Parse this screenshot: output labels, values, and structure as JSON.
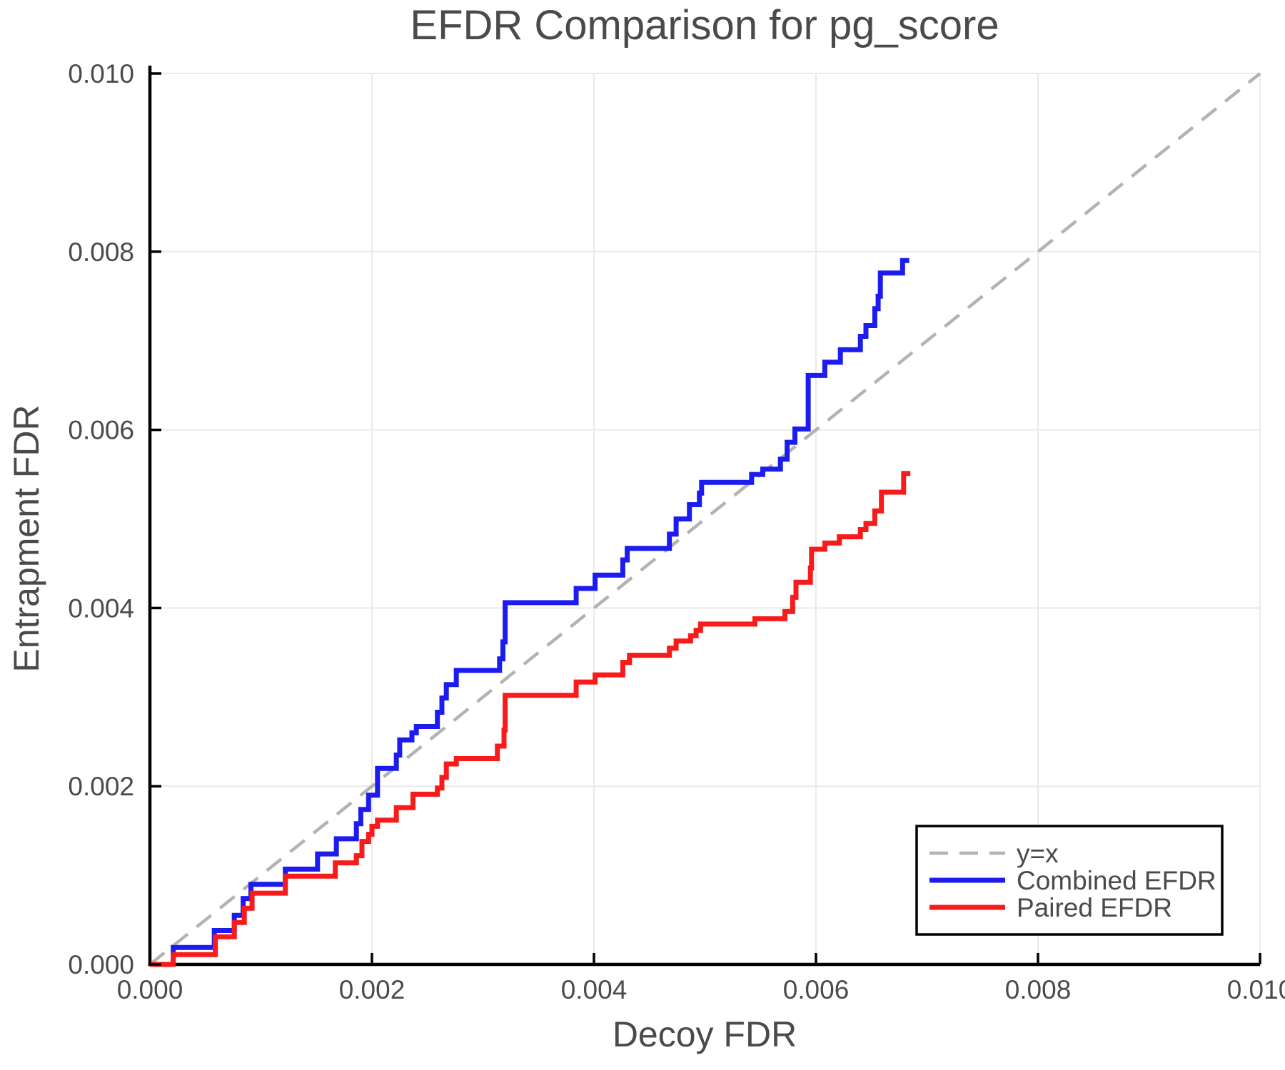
{
  "page": {
    "background": "#ffffff"
  },
  "chart_data": {
    "type": "line",
    "title": "EFDR Comparison for pg_score",
    "xlabel": "Decoy FDR",
    "ylabel": "Entrapment FDR",
    "xlim": [
      0,
      0.01
    ],
    "ylim": [
      0,
      0.0101
    ],
    "xticks": [
      0,
      0.002,
      0.004,
      0.006,
      0.008,
      0.01
    ],
    "xtick_labels": [
      "0.000",
      "0.002",
      "0.004",
      "0.006",
      "0.008",
      "0.010"
    ],
    "yticks": [
      0,
      0.002,
      0.004,
      0.006,
      0.008,
      0.01
    ],
    "ytick_labels": [
      "0.000",
      "0.002",
      "0.004",
      "0.006",
      "0.008",
      "0.010"
    ],
    "grid": true,
    "legend": {
      "position": "lower right",
      "entries": [
        "y=x",
        "Combined EFDR",
        "Paired EFDR"
      ]
    },
    "colors": {
      "reference": "#b3b3b3",
      "combined": "#1c1cf0",
      "paired": "#f71b1b",
      "grid": "#eaeaea",
      "axis": "#000000",
      "text": "#4a4a4a"
    },
    "series": [
      {
        "name": "y=x",
        "style": "dashed",
        "draw": "line",
        "color_key": "reference",
        "points": [
          [
            0,
            0
          ],
          [
            0.01,
            0.01
          ]
        ]
      },
      {
        "name": "Combined EFDR",
        "style": "solid",
        "draw": "step",
        "color_key": "combined",
        "points": [
          [
            0.0,
            0.0
          ],
          [
            0.00021,
            0.00019
          ],
          [
            0.00058,
            0.00038
          ],
          [
            0.00076,
            0.00055
          ],
          [
            0.00084,
            0.00074
          ],
          [
            0.00091,
            0.0009
          ],
          [
            0.00122,
            0.00107
          ],
          [
            0.00151,
            0.00124
          ],
          [
            0.00168,
            0.00141
          ],
          [
            0.00186,
            0.00158
          ],
          [
            0.0019,
            0.00174
          ],
          [
            0.00197,
            0.0019
          ],
          [
            0.00205,
            0.0022
          ],
          [
            0.00222,
            0.00235
          ],
          [
            0.00225,
            0.00252
          ],
          [
            0.00236,
            0.0026
          ],
          [
            0.0024,
            0.00267
          ],
          [
            0.00259,
            0.00283
          ],
          [
            0.00263,
            0.00299
          ],
          [
            0.00267,
            0.00314
          ],
          [
            0.00276,
            0.0033
          ],
          [
            0.00315,
            0.00343
          ],
          [
            0.00318,
            0.00362
          ],
          [
            0.0032,
            0.00406
          ],
          [
            0.00384,
            0.00422
          ],
          [
            0.00401,
            0.00437
          ],
          [
            0.00426,
            0.00454
          ],
          [
            0.0043,
            0.00467
          ],
          [
            0.00468,
            0.00483
          ],
          [
            0.00474,
            0.005
          ],
          [
            0.00486,
            0.00516
          ],
          [
            0.00495,
            0.00529
          ],
          [
            0.00497,
            0.00541
          ],
          [
            0.00542,
            0.0055
          ],
          [
            0.00552,
            0.00556
          ],
          [
            0.00568,
            0.00567
          ],
          [
            0.00574,
            0.00586
          ],
          [
            0.00581,
            0.00601
          ],
          [
            0.00593,
            0.00661
          ],
          [
            0.00608,
            0.00676
          ],
          [
            0.00622,
            0.0069
          ],
          [
            0.0064,
            0.00705
          ],
          [
            0.00645,
            0.00717
          ],
          [
            0.00653,
            0.00736
          ],
          [
            0.00656,
            0.0075
          ],
          [
            0.00658,
            0.00776
          ],
          [
            0.00678,
            0.0079
          ],
          [
            0.00684,
            0.0079
          ]
        ]
      },
      {
        "name": "Paired EFDR",
        "style": "solid",
        "draw": "step",
        "color_key": "paired",
        "points": [
          [
            0.0,
            0.0
          ],
          [
            0.00021,
            0.00011
          ],
          [
            0.00059,
            0.00031
          ],
          [
            0.00076,
            0.00047
          ],
          [
            0.00085,
            0.00063
          ],
          [
            0.00092,
            0.0008
          ],
          [
            0.00122,
            0.00099
          ],
          [
            0.00167,
            0.00114
          ],
          [
            0.00186,
            0.00122
          ],
          [
            0.00191,
            0.00138
          ],
          [
            0.00197,
            0.00146
          ],
          [
            0.002,
            0.00155
          ],
          [
            0.00205,
            0.00162
          ],
          [
            0.00222,
            0.00176
          ],
          [
            0.00237,
            0.00191
          ],
          [
            0.00259,
            0.00198
          ],
          [
            0.00263,
            0.0021
          ],
          [
            0.00267,
            0.00225
          ],
          [
            0.00276,
            0.00231
          ],
          [
            0.00313,
            0.00245
          ],
          [
            0.00319,
            0.00263
          ],
          [
            0.0032,
            0.00302
          ],
          [
            0.00384,
            0.00317
          ],
          [
            0.00401,
            0.00325
          ],
          [
            0.00426,
            0.00339
          ],
          [
            0.00432,
            0.00347
          ],
          [
            0.00468,
            0.00355
          ],
          [
            0.00474,
            0.00363
          ],
          [
            0.00487,
            0.00369
          ],
          [
            0.00492,
            0.00375
          ],
          [
            0.00496,
            0.00382
          ],
          [
            0.00545,
            0.00388
          ],
          [
            0.00572,
            0.00396
          ],
          [
            0.00579,
            0.00412
          ],
          [
            0.00582,
            0.00429
          ],
          [
            0.00595,
            0.00445
          ],
          [
            0.00596,
            0.00466
          ],
          [
            0.00608,
            0.00473
          ],
          [
            0.00621,
            0.0048
          ],
          [
            0.0064,
            0.00488
          ],
          [
            0.00645,
            0.00495
          ],
          [
            0.00653,
            0.00509
          ],
          [
            0.00659,
            0.0053
          ],
          [
            0.00679,
            0.00551
          ],
          [
            0.00685,
            0.00551
          ]
        ]
      }
    ]
  }
}
